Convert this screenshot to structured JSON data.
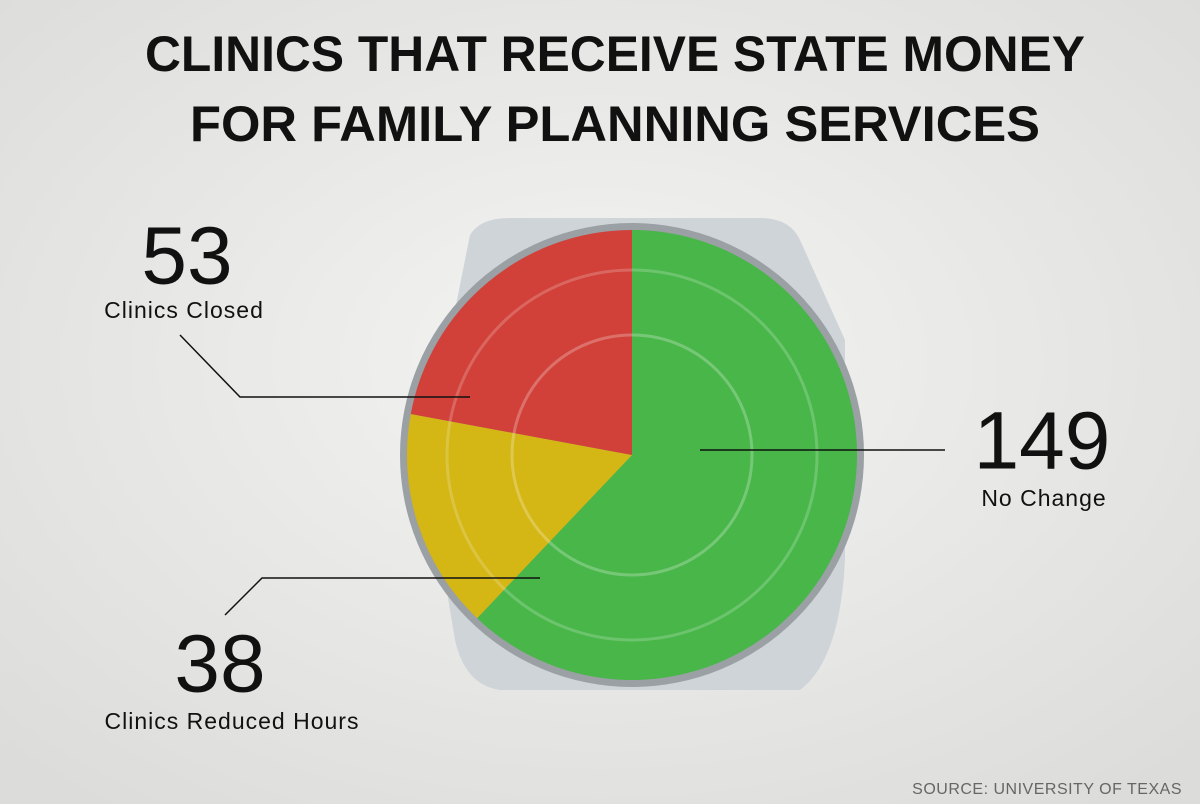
{
  "chart_data": {
    "type": "pie",
    "title": [
      "CLINICS THAT RECEIVE STATE MONEY",
      "FOR FAMILY PLANNING SERVICES"
    ],
    "categories": [
      "No Change",
      "Clinics Reduced Hours",
      "Clinics Closed"
    ],
    "values": [
      149,
      38,
      53
    ],
    "colors": [
      "#3cb83c",
      "#dcb800",
      "#d8322a"
    ],
    "source": "SOURCE: UNIVERSITY OF TEXAS"
  }
}
